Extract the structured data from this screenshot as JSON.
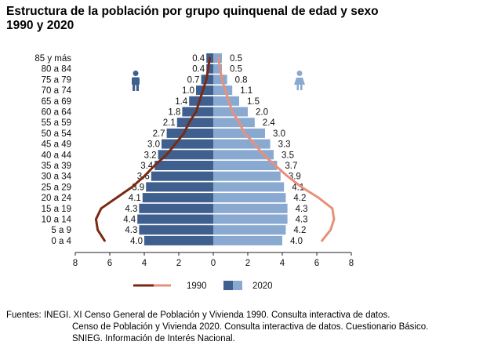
{
  "title": {
    "line1": "Estructura de la población por grupo quinquenal de edad y sexo",
    "line2": "1990 y 2020"
  },
  "sources": {
    "line1": "Fuentes: INEGI. XI Censo General de Población y Vivienda 1990. Consulta interactiva de datos.",
    "line2": "Censo de Población y Vivienda 2020. Consulta interactiva de datos. Cuestionario Básico.",
    "line3": "SNIEG. Información de Interés Nacional."
  },
  "icons": {
    "male": "male-person-icon",
    "female": "female-person-icon"
  },
  "colors": {
    "male_bar": "#3f5f8f",
    "female_bar": "#8aa9d1",
    "line_1990_male": "#7a2a12",
    "line_1990_female": "#e8907a"
  },
  "chart_data": {
    "type": "bar",
    "subtype": "population-pyramid",
    "categories": [
      "85 y más",
      "80 a 84",
      "75 a 79",
      "70 a 74",
      "65 a 69",
      "60 a 64",
      "55 a 59",
      "50 a 54",
      "45 a 49",
      "40 a 44",
      "35 a 39",
      "30 a 34",
      "25 a 29",
      "20 a 24",
      "15 a 19",
      "10 a 14",
      "5 a 9",
      "0 a 4"
    ],
    "series": [
      {
        "name": "2020",
        "group": "male",
        "values": [
          0.4,
          0.4,
          0.7,
          1.0,
          1.4,
          1.8,
          2.1,
          2.7,
          3.0,
          3.2,
          3.4,
          3.6,
          3.9,
          4.1,
          4.3,
          4.4,
          4.3,
          4.0
        ]
      },
      {
        "name": "2020",
        "group": "female",
        "values": [
          0.5,
          0.5,
          0.8,
          1.1,
          1.5,
          2.0,
          2.4,
          3.0,
          3.3,
          3.5,
          3.7,
          3.9,
          4.1,
          4.2,
          4.3,
          4.3,
          4.2,
          4.0
        ]
      },
      {
        "name": "1990",
        "group": "male",
        "values": [
          0.2,
          0.3,
          0.4,
          0.6,
          0.8,
          1.0,
          1.4,
          1.7,
          2.2,
          2.7,
          3.4,
          4.0,
          4.7,
          5.6,
          6.5,
          6.8,
          6.7,
          6.3
        ]
      },
      {
        "name": "1990",
        "group": "female",
        "values": [
          0.3,
          0.4,
          0.5,
          0.7,
          0.9,
          1.1,
          1.5,
          1.8,
          2.4,
          2.9,
          3.6,
          4.3,
          5.1,
          6.1,
          6.9,
          7.0,
          6.8,
          6.3
        ]
      }
    ],
    "x_ticks": [
      "8",
      "6",
      "4",
      "2",
      "0",
      "2",
      "4",
      "6",
      "8"
    ],
    "xlim": [
      -8,
      8
    ],
    "legend": {
      "items": [
        "1990",
        "2020"
      ],
      "position": "bottom"
    },
    "grid": false
  }
}
